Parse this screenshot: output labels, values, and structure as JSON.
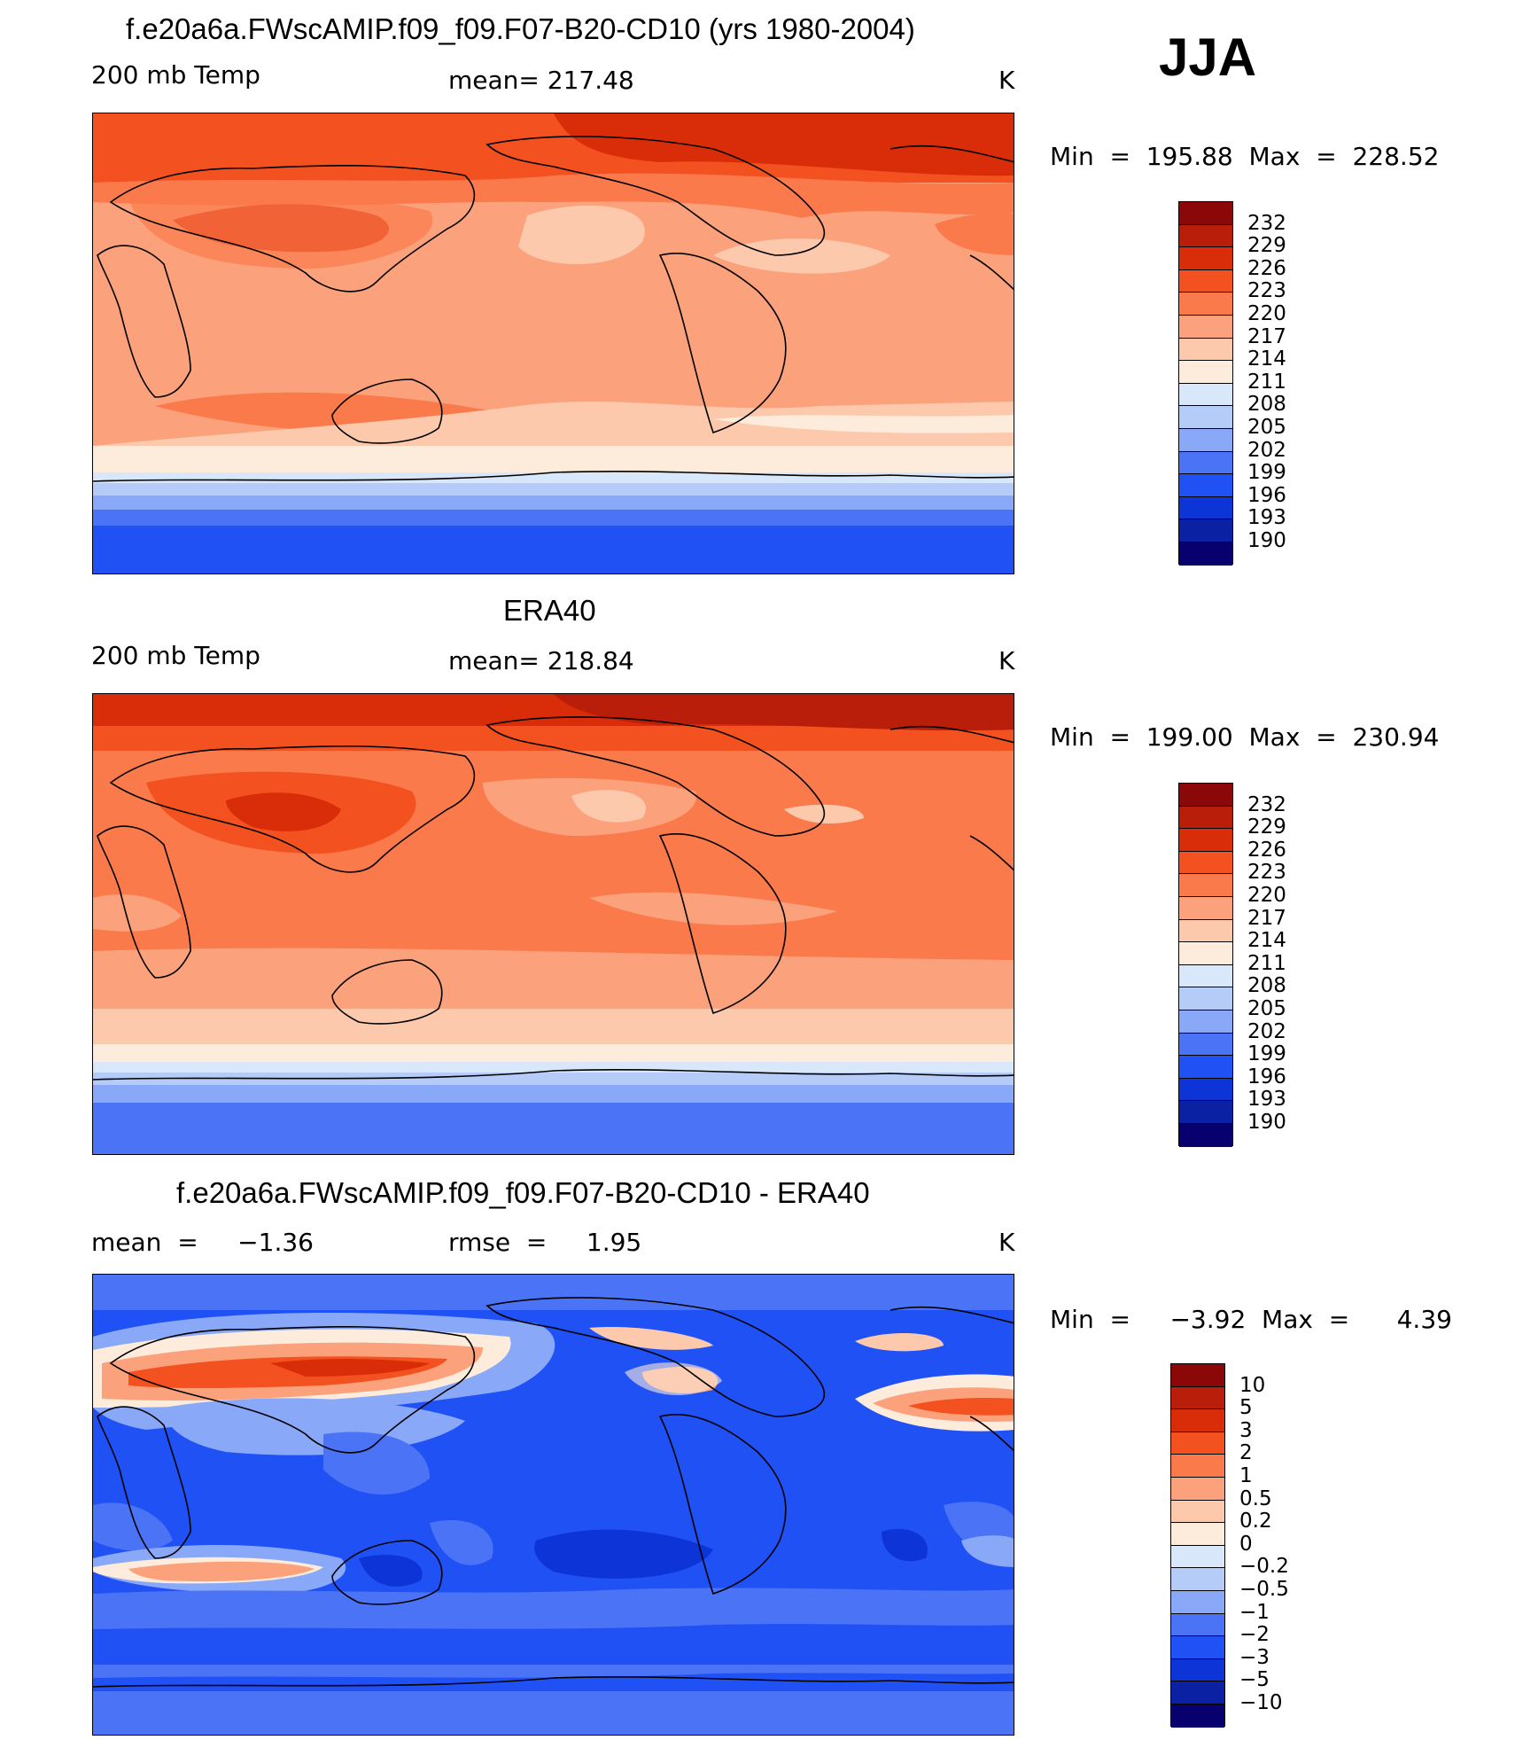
{
  "season": "JJA",
  "colors": {
    "abs": [
      "#08006e",
      "#0a21a3",
      "#0d34d6",
      "#2051f5",
      "#4a73f5",
      "#8aa8f8",
      "#b5ccf8",
      "#d8e8fa",
      "#fdebdc",
      "#fcc9ad",
      "#fba27c",
      "#fb7a4c",
      "#f3511f",
      "#d92d09",
      "#b81e09",
      "#8a0808"
    ],
    "diff": [
      "#08006e",
      "#0a21a3",
      "#0d34d6",
      "#2051f5",
      "#4a73f5",
      "#8aa8f8",
      "#b5ccf8",
      "#d8e8fa",
      "#fdebdc",
      "#fcc9ad",
      "#fba27c",
      "#fb7a4c",
      "#f3511f",
      "#d92d09",
      "#b81e09",
      "#8a0808"
    ]
  },
  "panels": [
    {
      "title": "f.e20a6a.FWscAMIP.f09_f09.F07-B20-CD10 (yrs 1980-2004)",
      "left_label": "200 mb Temp",
      "center_label": "mean= 217.48",
      "unit": "K",
      "minmax": "Min  =  195.88  Max  =  228.52",
      "levels": [
        "232",
        "229",
        "226",
        "223",
        "220",
        "217",
        "214",
        "211",
        "208",
        "205",
        "202",
        "199",
        "196",
        "193",
        "190"
      ]
    },
    {
      "title": "ERA40",
      "left_label": "200 mb Temp",
      "center_label": "mean= 218.84",
      "unit": "K",
      "minmax": "Min  =  199.00  Max  =  230.94",
      "levels": [
        "232",
        "229",
        "226",
        "223",
        "220",
        "217",
        "214",
        "211",
        "208",
        "205",
        "202",
        "199",
        "196",
        "193",
        "190"
      ]
    },
    {
      "title": "f.e20a6a.FWscAMIP.f09_f09.F07-B20-CD10 - ERA40",
      "left_label": "mean  =     −1.36",
      "center_label": "rmse  =     1.95",
      "unit": "K",
      "minmax": "Min  =     −3.92  Max  =      4.39",
      "levels": [
        "10",
        "5",
        "3",
        "2",
        "1",
        "0.5",
        "0.2",
        "0",
        "−0.2",
        "−0.5",
        "−1",
        "−2",
        "−3",
        "−5",
        "−10"
      ]
    }
  ]
}
